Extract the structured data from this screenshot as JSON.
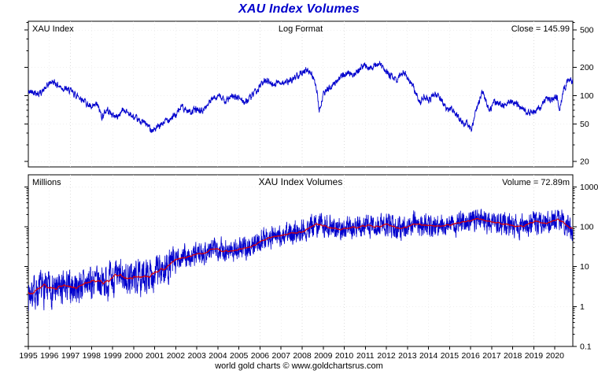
{
  "title": "XAU Index Volumes",
  "footer": "world gold charts © www.goldchartsrus.com",
  "colors": {
    "title_text": "#0000cc",
    "price_line": "#0000cd",
    "volume_line": "#0000cd",
    "moving_average_line": "#dd0000",
    "grid": "#dcdcdc",
    "axis": "#000000"
  },
  "chart_data": [
    {
      "type": "line",
      "panel": "price",
      "title": "XAU Index",
      "subtitle": "Log Format",
      "annotation": "Close = 145.99",
      "close": 145.99,
      "yscale": "log",
      "ylim": [
        17.5,
        620
      ],
      "yticks": [
        20,
        50,
        100,
        200,
        500
      ],
      "xlim": [
        1995,
        2020.85
      ],
      "xticks": [
        1995,
        1996,
        1997,
        1998,
        1999,
        2000,
        2001,
        2002,
        2003,
        2004,
        2005,
        2006,
        2007,
        2008,
        2009,
        2010,
        2011,
        2012,
        2013,
        2014,
        2015,
        2016,
        2017,
        2018,
        2019,
        2020
      ],
      "grid": true,
      "legend": "none",
      "series": [
        {
          "name": "XAU Index daily close",
          "color": "#0000cd",
          "anchors": [
            [
              1995.0,
              108
            ],
            [
              1995.25,
              112
            ],
            [
              1995.5,
              105
            ],
            [
              1995.75,
              115
            ],
            [
              1996.0,
              135
            ],
            [
              1996.1,
              142
            ],
            [
              1996.3,
              136
            ],
            [
              1996.5,
              125
            ],
            [
              1996.75,
              118
            ],
            [
              1997.0,
              112
            ],
            [
              1997.25,
              102
            ],
            [
              1997.5,
              95
            ],
            [
              1997.75,
              85
            ],
            [
              1998.0,
              72
            ],
            [
              1998.25,
              82
            ],
            [
              1998.5,
              60
            ],
            [
              1998.75,
              72
            ],
            [
              1999.0,
              62
            ],
            [
              1999.25,
              60
            ],
            [
              1999.5,
              72
            ],
            [
              1999.75,
              66
            ],
            [
              2000.0,
              58
            ],
            [
              2000.25,
              54
            ],
            [
              2000.5,
              52
            ],
            [
              2000.75,
              46
            ],
            [
              2000.9,
              43
            ],
            [
              2001.25,
              47
            ],
            [
              2001.5,
              54
            ],
            [
              2001.75,
              58
            ],
            [
              2002.0,
              62
            ],
            [
              2002.3,
              78
            ],
            [
              2002.5,
              70
            ],
            [
              2002.75,
              68
            ],
            [
              2003.0,
              72
            ],
            [
              2003.25,
              68
            ],
            [
              2003.5,
              80
            ],
            [
              2003.8,
              94
            ],
            [
              2004.0,
              102
            ],
            [
              2004.3,
              88
            ],
            [
              2004.5,
              92
            ],
            [
              2004.75,
              98
            ],
            [
              2005.0,
              95
            ],
            [
              2005.3,
              85
            ],
            [
              2005.6,
              98
            ],
            [
              2005.85,
              112
            ],
            [
              2006.0,
              128
            ],
            [
              2006.35,
              150
            ],
            [
              2006.55,
              132
            ],
            [
              2006.8,
              138
            ],
            [
              2007.0,
              140
            ],
            [
              2007.3,
              138
            ],
            [
              2007.6,
              152
            ],
            [
              2007.8,
              168
            ],
            [
              2008.0,
              182
            ],
            [
              2008.2,
              188
            ],
            [
              2008.5,
              165
            ],
            [
              2008.7,
              110
            ],
            [
              2008.82,
              68
            ],
            [
              2009.0,
              105
            ],
            [
              2009.3,
              122
            ],
            [
              2009.6,
              142
            ],
            [
              2009.9,
              165
            ],
            [
              2010.1,
              168
            ],
            [
              2010.4,
              172
            ],
            [
              2010.6,
              178
            ],
            [
              2010.8,
              198
            ],
            [
              2010.95,
              210
            ],
            [
              2011.1,
              205
            ],
            [
              2011.35,
              200
            ],
            [
              2011.55,
              212
            ],
            [
              2011.7,
              220
            ],
            [
              2011.85,
              195
            ],
            [
              2012.0,
              180
            ],
            [
              2012.3,
              155
            ],
            [
              2012.55,
              150
            ],
            [
              2012.8,
              185
            ],
            [
              2013.0,
              160
            ],
            [
              2013.25,
              125
            ],
            [
              2013.5,
              95
            ],
            [
              2013.62,
              86
            ],
            [
              2013.8,
              100
            ],
            [
              2014.0,
              86
            ],
            [
              2014.2,
              105
            ],
            [
              2014.5,
              98
            ],
            [
              2014.75,
              80
            ],
            [
              2014.9,
              68
            ],
            [
              2015.05,
              74
            ],
            [
              2015.25,
              70
            ],
            [
              2015.5,
              55
            ],
            [
              2015.65,
              50
            ],
            [
              2015.8,
              53
            ],
            [
              2015.95,
              45
            ],
            [
              2016.05,
              42
            ],
            [
              2016.2,
              62
            ],
            [
              2016.45,
              95
            ],
            [
              2016.6,
              110
            ],
            [
              2016.8,
              78
            ],
            [
              2016.95,
              72
            ],
            [
              2017.1,
              85
            ],
            [
              2017.3,
              82
            ],
            [
              2017.55,
              80
            ],
            [
              2017.8,
              88
            ],
            [
              2018.0,
              84
            ],
            [
              2018.3,
              79
            ],
            [
              2018.55,
              72
            ],
            [
              2018.72,
              64
            ],
            [
              2018.9,
              68
            ],
            [
              2019.05,
              68
            ],
            [
              2019.3,
              74
            ],
            [
              2019.5,
              88
            ],
            [
              2019.62,
              96
            ],
            [
              2019.8,
              90
            ],
            [
              2020.0,
              98
            ],
            [
              2020.12,
              94
            ],
            [
              2020.22,
              70
            ],
            [
              2020.4,
              112
            ],
            [
              2020.58,
              140
            ],
            [
              2020.7,
              152
            ],
            [
              2020.85,
              146
            ]
          ]
        }
      ]
    },
    {
      "type": "line",
      "panel": "volume",
      "title": "XAU Index Volumes",
      "units_label": "Millions",
      "annotation": "Volume = 72.89m",
      "volume_close_millions": 72.89,
      "yscale": "log",
      "ylim": [
        0.1,
        2000
      ],
      "yticks": [
        0.1,
        1,
        10,
        100,
        1000
      ],
      "grid": true,
      "legend": "none",
      "series": [
        {
          "name": "Daily volume (millions of shares)",
          "color": "#0000cd",
          "anchors": [
            [
              1995.0,
              2.2
            ],
            [
              1995.5,
              2.5
            ],
            [
              1996.0,
              2.8
            ],
            [
              1996.5,
              2.5
            ],
            [
              1997.0,
              3.0
            ],
            [
              1997.5,
              3.4
            ],
            [
              1998.0,
              4.0
            ],
            [
              1998.5,
              4.2
            ],
            [
              1999.0,
              4.6
            ],
            [
              1999.5,
              5.5
            ],
            [
              2000.0,
              5.0
            ],
            [
              2000.5,
              5.5
            ],
            [
              2001.0,
              7
            ],
            [
              2001.5,
              9
            ],
            [
              2002.0,
              13
            ],
            [
              2002.3,
              18
            ],
            [
              2002.6,
              16
            ],
            [
              2003.0,
              20
            ],
            [
              2003.5,
              24
            ],
            [
              2004.0,
              30
            ],
            [
              2004.5,
              26
            ],
            [
              2005.0,
              27
            ],
            [
              2005.5,
              30
            ],
            [
              2005.85,
              40
            ],
            [
              2006.1,
              52
            ],
            [
              2006.5,
              55
            ],
            [
              2007.0,
              58
            ],
            [
              2007.5,
              70
            ],
            [
              2008.0,
              90
            ],
            [
              2008.5,
              95
            ],
            [
              2008.85,
              130
            ],
            [
              2009.1,
              110
            ],
            [
              2009.5,
              95
            ],
            [
              2010.0,
              100
            ],
            [
              2010.5,
              92
            ],
            [
              2011.0,
              100
            ],
            [
              2011.5,
              100
            ],
            [
              2011.85,
              110
            ],
            [
              2012.1,
              100
            ],
            [
              2012.5,
              92
            ],
            [
              2013.0,
              110
            ],
            [
              2013.3,
              135
            ],
            [
              2013.6,
              120
            ],
            [
              2014.0,
              110
            ],
            [
              2014.5,
              105
            ],
            [
              2015.0,
              120
            ],
            [
              2015.5,
              125
            ],
            [
              2016.0,
              150
            ],
            [
              2016.5,
              145
            ],
            [
              2017.0,
              130
            ],
            [
              2017.5,
              115
            ],
            [
              2018.0,
              120
            ],
            [
              2018.5,
              105
            ],
            [
              2019.0,
              125
            ],
            [
              2019.5,
              135
            ],
            [
              2020.0,
              140
            ],
            [
              2020.3,
              150
            ],
            [
              2020.6,
              110
            ],
            [
              2020.85,
              85
            ]
          ]
        },
        {
          "name": "Volume moving average",
          "color": "#dd0000",
          "derived_from": "Daily volume (millions of shares)",
          "method": "moving-average"
        }
      ]
    }
  ]
}
